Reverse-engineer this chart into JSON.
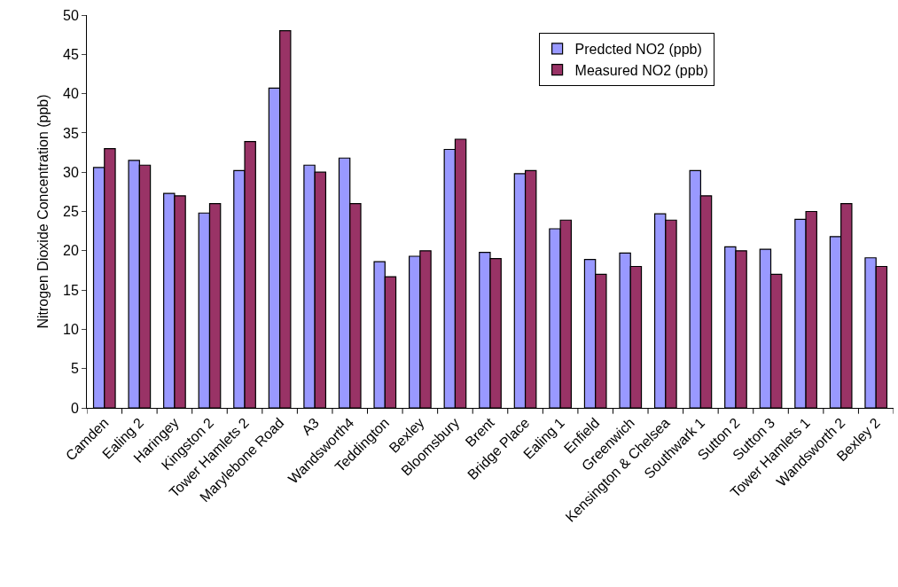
{
  "chart_data": {
    "type": "bar",
    "ylabel": "Nitrogen Dioxide Concentration (ppb)",
    "categories": [
      "Camden",
      "Ealing 2",
      "Haringey",
      "Kingston 2",
      "Tower Hamlets 2",
      "Marylebone Road",
      "A3",
      "Wandsworth4",
      "Teddington",
      "Bexley",
      "Bloomsbury",
      "Brent",
      "Bridge Place",
      "Ealing 1",
      "Enfield",
      "Greenwich",
      "Kensington & Chelsea",
      "Southwark 1",
      "Sutton 2",
      "Sutton 3",
      "Tower Hamlets 1",
      "Wandsworth 2",
      "Bexley 2"
    ],
    "series": [
      {
        "name": "Predcted NO2 (ppb)",
        "color": "#9999ff",
        "values": [
          30.6,
          31.5,
          27.3,
          24.8,
          30.2,
          40.7,
          30.9,
          31.8,
          18.6,
          19.3,
          32.9,
          19.8,
          29.8,
          22.8,
          18.9,
          19.7,
          24.7,
          30.2,
          20.5,
          20.2,
          24.0,
          21.8,
          19.1
        ]
      },
      {
        "name": "Measured NO2 (ppb)",
        "color": "#993366",
        "values": [
          33.0,
          30.9,
          27.0,
          26.0,
          33.9,
          48.0,
          30.0,
          26.0,
          16.7,
          20.0,
          34.2,
          19.0,
          30.2,
          23.9,
          17.0,
          18.0,
          23.9,
          27.0,
          20.0,
          17.0,
          25.0,
          26.0,
          18.0
        ]
      }
    ],
    "ylim": [
      0,
      50
    ],
    "yticks": [
      0,
      5,
      10,
      15,
      20,
      25,
      30,
      35,
      40,
      45,
      50
    ],
    "grid": false,
    "legend": "top right"
  }
}
